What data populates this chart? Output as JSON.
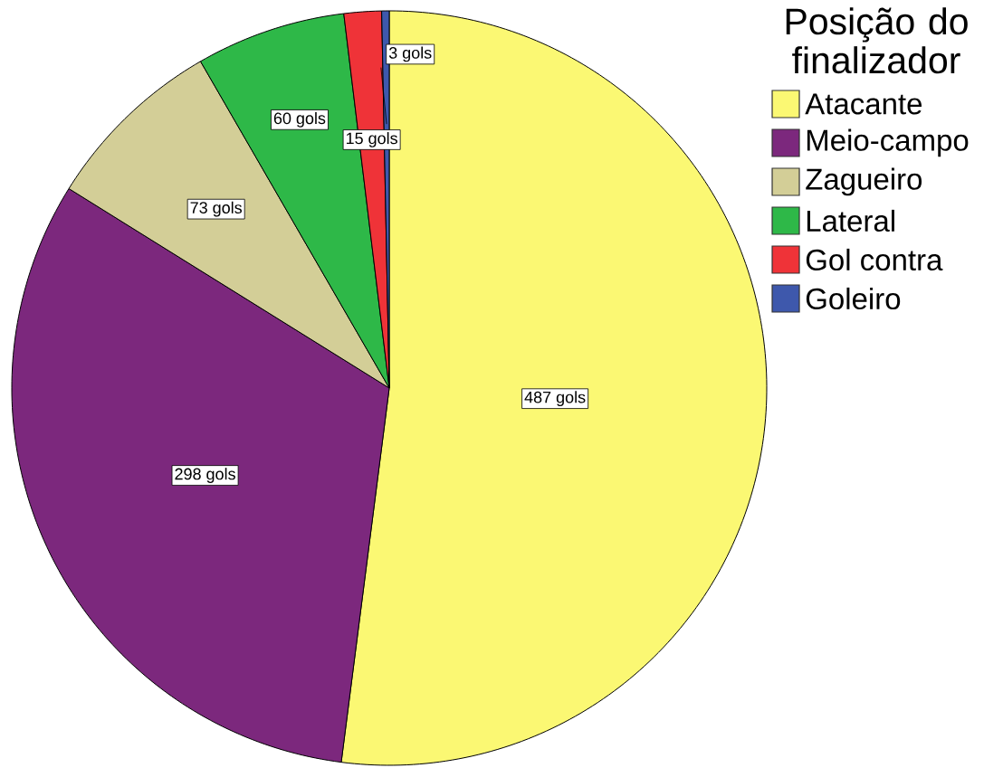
{
  "chart_data": {
    "type": "pie",
    "legend_title": "Posição do finalizador",
    "categories": [
      "Atacante",
      "Meio-campo",
      "Zagueiro",
      "Lateral",
      "Gol contra",
      "Goleiro"
    ],
    "values": [
      487,
      298,
      73,
      60,
      15,
      3
    ],
    "colors": [
      "#FBF873",
      "#7C287D",
      "#D3CE97",
      "#2EB848",
      "#EF3338",
      "#3E58AC"
    ],
    "value_labels": [
      "487 gols",
      "298 gols",
      "73 gols",
      "60 gols",
      "15 gols",
      "3 gols"
    ],
    "legend": "top right"
  }
}
